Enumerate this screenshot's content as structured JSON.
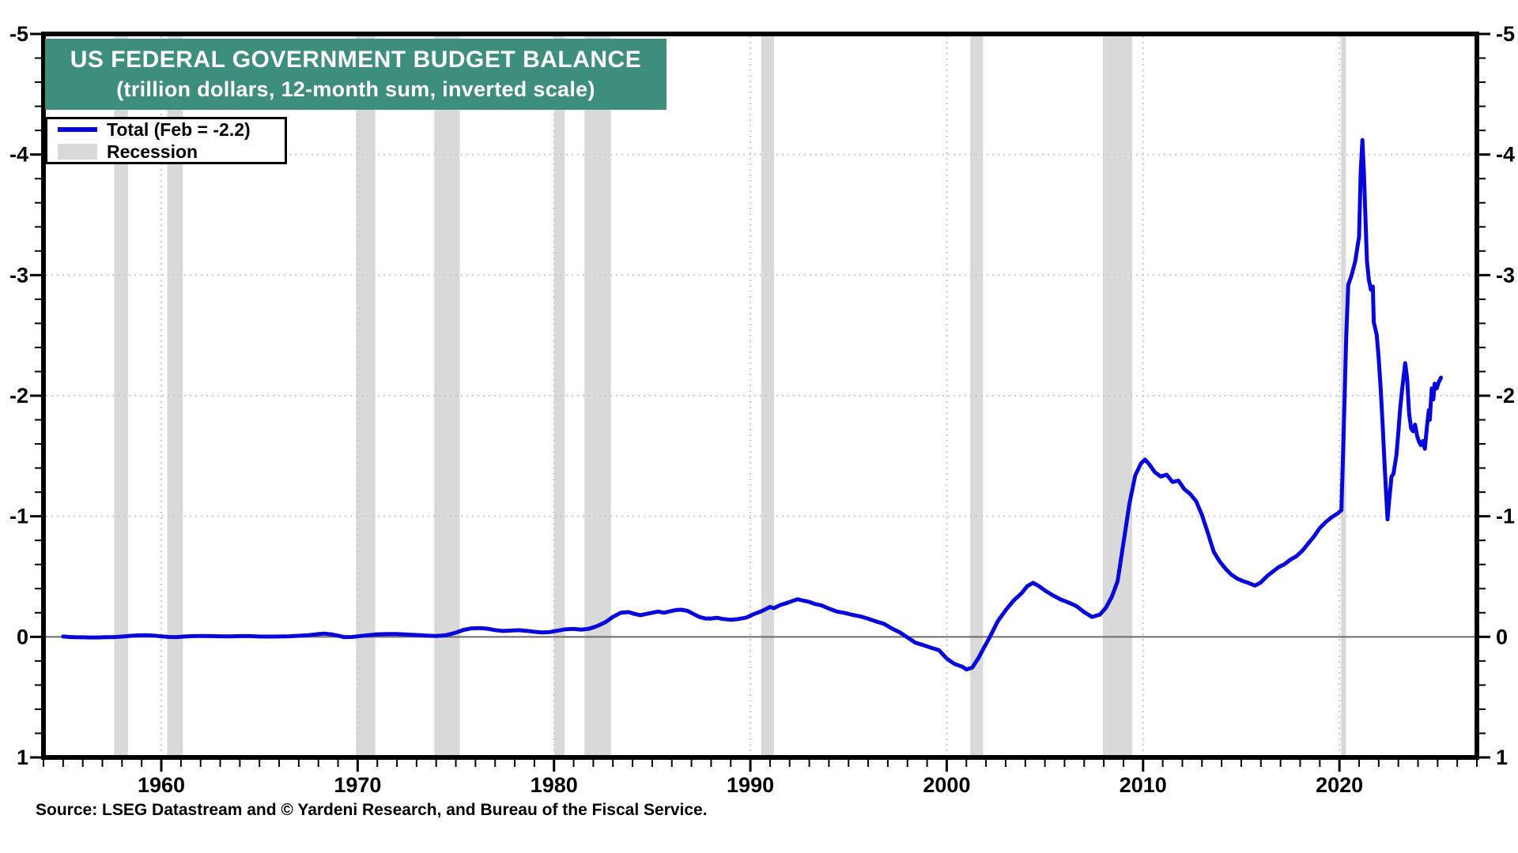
{
  "title": {
    "line1": "US FEDERAL GOVERNMENT BUDGET BALANCE",
    "line2": "(trillion dollars, 12-month sum, inverted scale)"
  },
  "legend": {
    "series_label": "Total (Feb = -2.2)",
    "recession_label": "Recession"
  },
  "source": "Source: LSEG Datastream and © Yardeni Research, and Bureau of the Fiscal Service.",
  "colors": {
    "title_bg": "#3e8e7e",
    "title_text": "#ffffff",
    "line": "#0707dd",
    "recession": "#d9d9d9",
    "grid": "#c9c9c9",
    "zero_line": "#6b6b6b",
    "axis": "#000000",
    "tick_label": "#000000"
  },
  "chart_data": {
    "type": "line",
    "title": "US FEDERAL GOVERNMENT BUDGET BALANCE (trillion dollars, 12-month sum, inverted scale)",
    "xlabel": "",
    "ylabel": "trillion dollars, 12-month sum",
    "inverted_y": true,
    "x_range": [
      1954,
      2027
    ],
    "y_top": -5,
    "y_bottom": 1,
    "y_ticks": [
      -5,
      -4,
      -3,
      -2,
      -1,
      0,
      1
    ],
    "y_minor_tick_step": 0.2,
    "x_ticks_labeled": [
      1960,
      1970,
      1980,
      1990,
      2000,
      2010,
      2020
    ],
    "x_minor_tick_step": 1,
    "grid_y": [
      -4,
      -3,
      -2,
      -1
    ],
    "grid_x": [
      1960,
      1970,
      1980,
      1990,
      2000,
      2010,
      2020
    ],
    "zero_line": 0,
    "legend_position": "top-left",
    "recessions": [
      [
        1957.6,
        1958.3
      ],
      [
        1960.3,
        1961.1
      ],
      [
        1969.92,
        1970.9
      ],
      [
        1973.9,
        1975.2
      ],
      [
        1980.0,
        1980.55
      ],
      [
        1981.55,
        1982.9
      ],
      [
        1990.55,
        1991.2
      ],
      [
        2001.2,
        2001.85
      ],
      [
        2007.95,
        2009.45
      ],
      [
        2020.08,
        2020.33
      ]
    ],
    "series": [
      {
        "name": "Total (Feb = -2.2)",
        "last_point_label": "Feb = -2.2",
        "points": [
          [
            1955.0,
            -0.003
          ],
          [
            1955.3,
            0.001
          ],
          [
            1955.6,
            0.003
          ],
          [
            1956.0,
            0.004
          ],
          [
            1956.4,
            0.005
          ],
          [
            1956.8,
            0.005
          ],
          [
            1957.2,
            0.003
          ],
          [
            1957.6,
            0.002
          ],
          [
            1958.0,
            -0.002
          ],
          [
            1958.4,
            -0.008
          ],
          [
            1958.8,
            -0.012
          ],
          [
            1959.2,
            -0.013
          ],
          [
            1959.6,
            -0.011
          ],
          [
            1960.0,
            -0.004
          ],
          [
            1960.4,
            0.001
          ],
          [
            1960.8,
            0.002
          ],
          [
            1961.2,
            -0.003
          ],
          [
            1961.6,
            -0.006
          ],
          [
            1962.0,
            -0.007
          ],
          [
            1962.5,
            -0.006
          ],
          [
            1963.0,
            -0.005
          ],
          [
            1963.5,
            -0.004
          ],
          [
            1964.0,
            -0.006
          ],
          [
            1964.5,
            -0.006
          ],
          [
            1965.0,
            -0.003
          ],
          [
            1965.5,
            -0.002
          ],
          [
            1966.0,
            -0.003
          ],
          [
            1966.5,
            -0.005
          ],
          [
            1967.0,
            -0.009
          ],
          [
            1967.5,
            -0.014
          ],
          [
            1968.0,
            -0.023
          ],
          [
            1968.3,
            -0.027
          ],
          [
            1968.7,
            -0.02
          ],
          [
            1969.0,
            -0.01
          ],
          [
            1969.3,
            0.002
          ],
          [
            1969.7,
            0.001
          ],
          [
            1970.0,
            -0.004
          ],
          [
            1970.5,
            -0.013
          ],
          [
            1971.0,
            -0.021
          ],
          [
            1971.5,
            -0.024
          ],
          [
            1972.0,
            -0.023
          ],
          [
            1972.5,
            -0.019
          ],
          [
            1973.0,
            -0.015
          ],
          [
            1973.5,
            -0.011
          ],
          [
            1974.0,
            -0.007
          ],
          [
            1974.5,
            -0.013
          ],
          [
            1975.0,
            -0.035
          ],
          [
            1975.4,
            -0.058
          ],
          [
            1975.8,
            -0.07
          ],
          [
            1976.2,
            -0.073
          ],
          [
            1976.6,
            -0.068
          ],
          [
            1977.0,
            -0.056
          ],
          [
            1977.4,
            -0.049
          ],
          [
            1977.8,
            -0.052
          ],
          [
            1978.2,
            -0.055
          ],
          [
            1978.6,
            -0.05
          ],
          [
            1979.0,
            -0.042
          ],
          [
            1979.4,
            -0.037
          ],
          [
            1979.8,
            -0.04
          ],
          [
            1980.2,
            -0.052
          ],
          [
            1980.6,
            -0.063
          ],
          [
            1981.0,
            -0.066
          ],
          [
            1981.4,
            -0.06
          ],
          [
            1981.8,
            -0.068
          ],
          [
            1982.2,
            -0.09
          ],
          [
            1982.6,
            -0.12
          ],
          [
            1983.0,
            -0.165
          ],
          [
            1983.4,
            -0.2
          ],
          [
            1983.8,
            -0.205
          ],
          [
            1984.1,
            -0.19
          ],
          [
            1984.4,
            -0.18
          ],
          [
            1984.7,
            -0.19
          ],
          [
            1985.0,
            -0.2
          ],
          [
            1985.3,
            -0.21
          ],
          [
            1985.6,
            -0.2
          ],
          [
            1985.9,
            -0.212
          ],
          [
            1986.2,
            -0.222
          ],
          [
            1986.5,
            -0.225
          ],
          [
            1986.8,
            -0.215
          ],
          [
            1987.1,
            -0.19
          ],
          [
            1987.4,
            -0.165
          ],
          [
            1987.7,
            -0.152
          ],
          [
            1988.0,
            -0.152
          ],
          [
            1988.3,
            -0.158
          ],
          [
            1988.6,
            -0.148
          ],
          [
            1989.0,
            -0.142
          ],
          [
            1989.4,
            -0.148
          ],
          [
            1989.8,
            -0.16
          ],
          [
            1990.2,
            -0.19
          ],
          [
            1990.6,
            -0.215
          ],
          [
            1991.0,
            -0.248
          ],
          [
            1991.2,
            -0.238
          ],
          [
            1991.5,
            -0.262
          ],
          [
            1991.8,
            -0.278
          ],
          [
            1992.1,
            -0.295
          ],
          [
            1992.4,
            -0.312
          ],
          [
            1992.7,
            -0.3
          ],
          [
            1993.0,
            -0.29
          ],
          [
            1993.3,
            -0.272
          ],
          [
            1993.6,
            -0.262
          ],
          [
            1994.0,
            -0.235
          ],
          [
            1994.4,
            -0.21
          ],
          [
            1994.8,
            -0.198
          ],
          [
            1995.2,
            -0.182
          ],
          [
            1995.6,
            -0.17
          ],
          [
            1996.0,
            -0.15
          ],
          [
            1996.4,
            -0.128
          ],
          [
            1996.8,
            -0.108
          ],
          [
            1997.2,
            -0.07
          ],
          [
            1997.6,
            -0.038
          ],
          [
            1998.0,
            0.005
          ],
          [
            1998.4,
            0.048
          ],
          [
            1998.8,
            0.068
          ],
          [
            1999.2,
            0.09
          ],
          [
            1999.6,
            0.11
          ],
          [
            2000.0,
            0.18
          ],
          [
            2000.4,
            0.225
          ],
          [
            2000.8,
            0.248
          ],
          [
            2001.0,
            0.27
          ],
          [
            2001.3,
            0.255
          ],
          [
            2001.6,
            0.18
          ],
          [
            2001.9,
            0.09
          ],
          [
            2002.2,
            0.0
          ],
          [
            2002.6,
            -0.13
          ],
          [
            2003.0,
            -0.22
          ],
          [
            2003.4,
            -0.3
          ],
          [
            2003.8,
            -0.36
          ],
          [
            2004.1,
            -0.42
          ],
          [
            2004.4,
            -0.448
          ],
          [
            2004.7,
            -0.42
          ],
          [
            2005.0,
            -0.385
          ],
          [
            2005.4,
            -0.345
          ],
          [
            2005.8,
            -0.31
          ],
          [
            2006.2,
            -0.285
          ],
          [
            2006.6,
            -0.255
          ],
          [
            2007.0,
            -0.205
          ],
          [
            2007.4,
            -0.165
          ],
          [
            2007.8,
            -0.185
          ],
          [
            2008.1,
            -0.24
          ],
          [
            2008.4,
            -0.33
          ],
          [
            2008.7,
            -0.46
          ],
          [
            2009.0,
            -0.78
          ],
          [
            2009.3,
            -1.1
          ],
          [
            2009.6,
            -1.34
          ],
          [
            2009.9,
            -1.44
          ],
          [
            2010.1,
            -1.47
          ],
          [
            2010.3,
            -1.435
          ],
          [
            2010.6,
            -1.365
          ],
          [
            2010.9,
            -1.33
          ],
          [
            2011.2,
            -1.345
          ],
          [
            2011.5,
            -1.285
          ],
          [
            2011.8,
            -1.295
          ],
          [
            2012.1,
            -1.225
          ],
          [
            2012.4,
            -1.185
          ],
          [
            2012.7,
            -1.125
          ],
          [
            2013.0,
            -1.01
          ],
          [
            2013.3,
            -0.86
          ],
          [
            2013.6,
            -0.705
          ],
          [
            2013.9,
            -0.625
          ],
          [
            2014.2,
            -0.565
          ],
          [
            2014.5,
            -0.515
          ],
          [
            2014.8,
            -0.482
          ],
          [
            2015.1,
            -0.462
          ],
          [
            2015.4,
            -0.445
          ],
          [
            2015.7,
            -0.425
          ],
          [
            2016.0,
            -0.452
          ],
          [
            2016.3,
            -0.502
          ],
          [
            2016.6,
            -0.54
          ],
          [
            2016.9,
            -0.578
          ],
          [
            2017.2,
            -0.602
          ],
          [
            2017.5,
            -0.64
          ],
          [
            2017.8,
            -0.668
          ],
          [
            2018.1,
            -0.712
          ],
          [
            2018.4,
            -0.772
          ],
          [
            2018.7,
            -0.832
          ],
          [
            2019.0,
            -0.902
          ],
          [
            2019.3,
            -0.952
          ],
          [
            2019.6,
            -0.992
          ],
          [
            2019.9,
            -1.022
          ],
          [
            2020.1,
            -1.05
          ],
          [
            2020.2,
            -1.6
          ],
          [
            2020.35,
            -2.5
          ],
          [
            2020.45,
            -2.92
          ],
          [
            2020.6,
            -2.99
          ],
          [
            2020.8,
            -3.11
          ],
          [
            2021.0,
            -3.32
          ],
          [
            2021.08,
            -3.85
          ],
          [
            2021.17,
            -4.12
          ],
          [
            2021.25,
            -3.84
          ],
          [
            2021.3,
            -3.6
          ],
          [
            2021.4,
            -3.12
          ],
          [
            2021.5,
            -2.96
          ],
          [
            2021.6,
            -2.88
          ],
          [
            2021.7,
            -2.905
          ],
          [
            2021.75,
            -2.61
          ],
          [
            2021.9,
            -2.505
          ],
          [
            2022.0,
            -2.31
          ],
          [
            2022.1,
            -2.06
          ],
          [
            2022.2,
            -1.76
          ],
          [
            2022.3,
            -1.42
          ],
          [
            2022.45,
            -0.975
          ],
          [
            2022.55,
            -1.16
          ],
          [
            2022.65,
            -1.33
          ],
          [
            2022.75,
            -1.35
          ],
          [
            2022.9,
            -1.505
          ],
          [
            2023.0,
            -1.7
          ],
          [
            2023.1,
            -1.905
          ],
          [
            2023.2,
            -2.06
          ],
          [
            2023.35,
            -2.27
          ],
          [
            2023.45,
            -2.14
          ],
          [
            2023.55,
            -1.85
          ],
          [
            2023.65,
            -1.73
          ],
          [
            2023.75,
            -1.705
          ],
          [
            2023.85,
            -1.76
          ],
          [
            2023.95,
            -1.67
          ],
          [
            2024.05,
            -1.62
          ],
          [
            2024.15,
            -1.59
          ],
          [
            2024.25,
            -1.625
          ],
          [
            2024.35,
            -1.56
          ],
          [
            2024.45,
            -1.735
          ],
          [
            2024.55,
            -1.88
          ],
          [
            2024.6,
            -1.8
          ],
          [
            2024.7,
            -2.06
          ],
          [
            2024.78,
            -1.97
          ],
          [
            2024.85,
            -2.1
          ],
          [
            2024.95,
            -2.06
          ],
          [
            2025.05,
            -2.11
          ],
          [
            2025.17,
            -2.15
          ]
        ]
      }
    ]
  }
}
